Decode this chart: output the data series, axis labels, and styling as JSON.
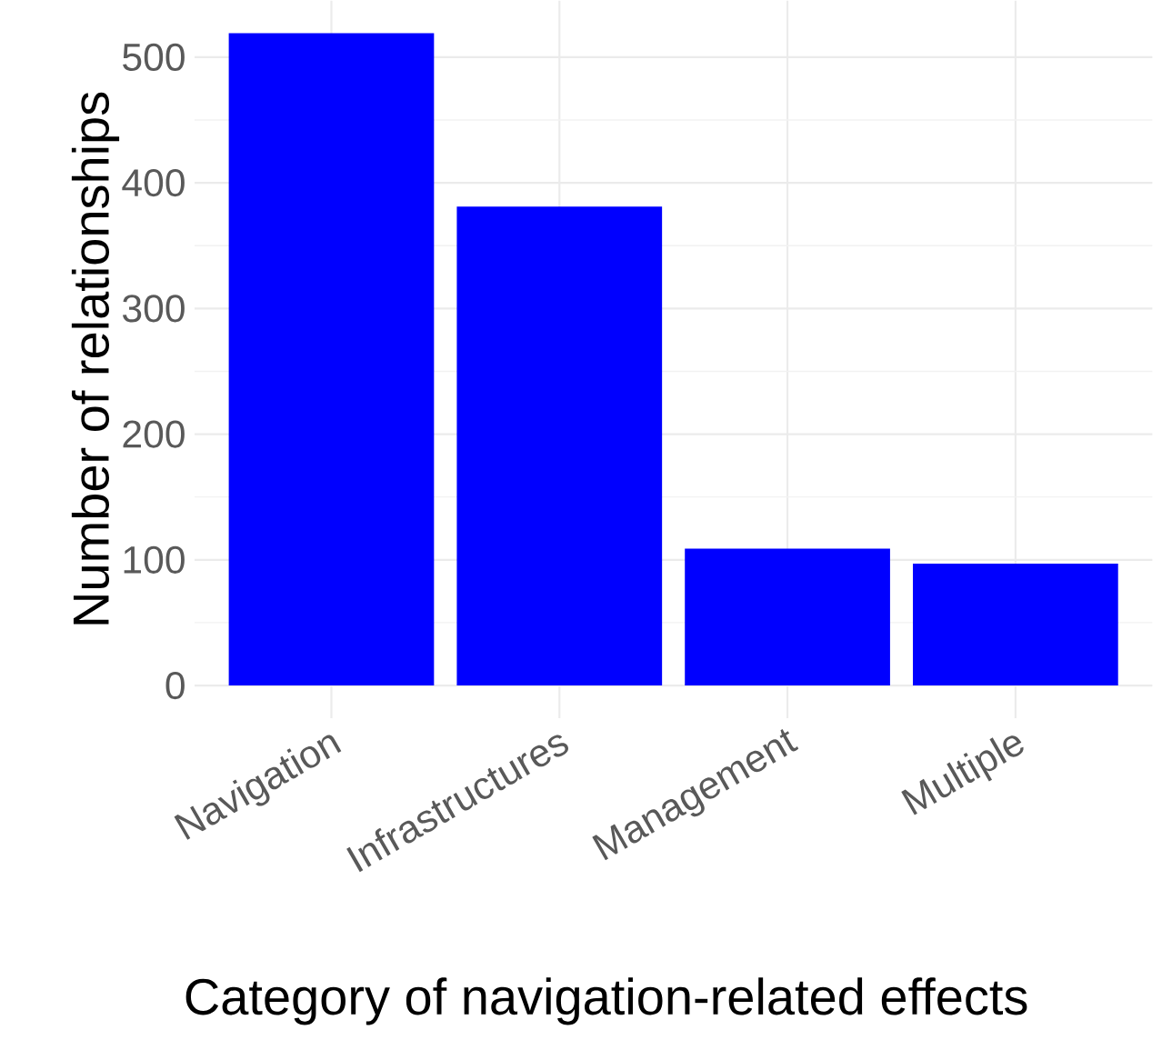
{
  "chart_data": {
    "type": "bar",
    "xlabel": "Category of navigation-related effects",
    "ylabel": "Number of relationships",
    "categories": [
      "Navigation",
      "Infrastructures",
      "Management",
      "Multiple"
    ],
    "values": [
      519,
      381,
      109,
      97
    ],
    "color": "#0000ff",
    "ylim": [
      -26,
      545
    ],
    "yticks": [
      0,
      100,
      200,
      300,
      400,
      500
    ],
    "grid": true
  }
}
